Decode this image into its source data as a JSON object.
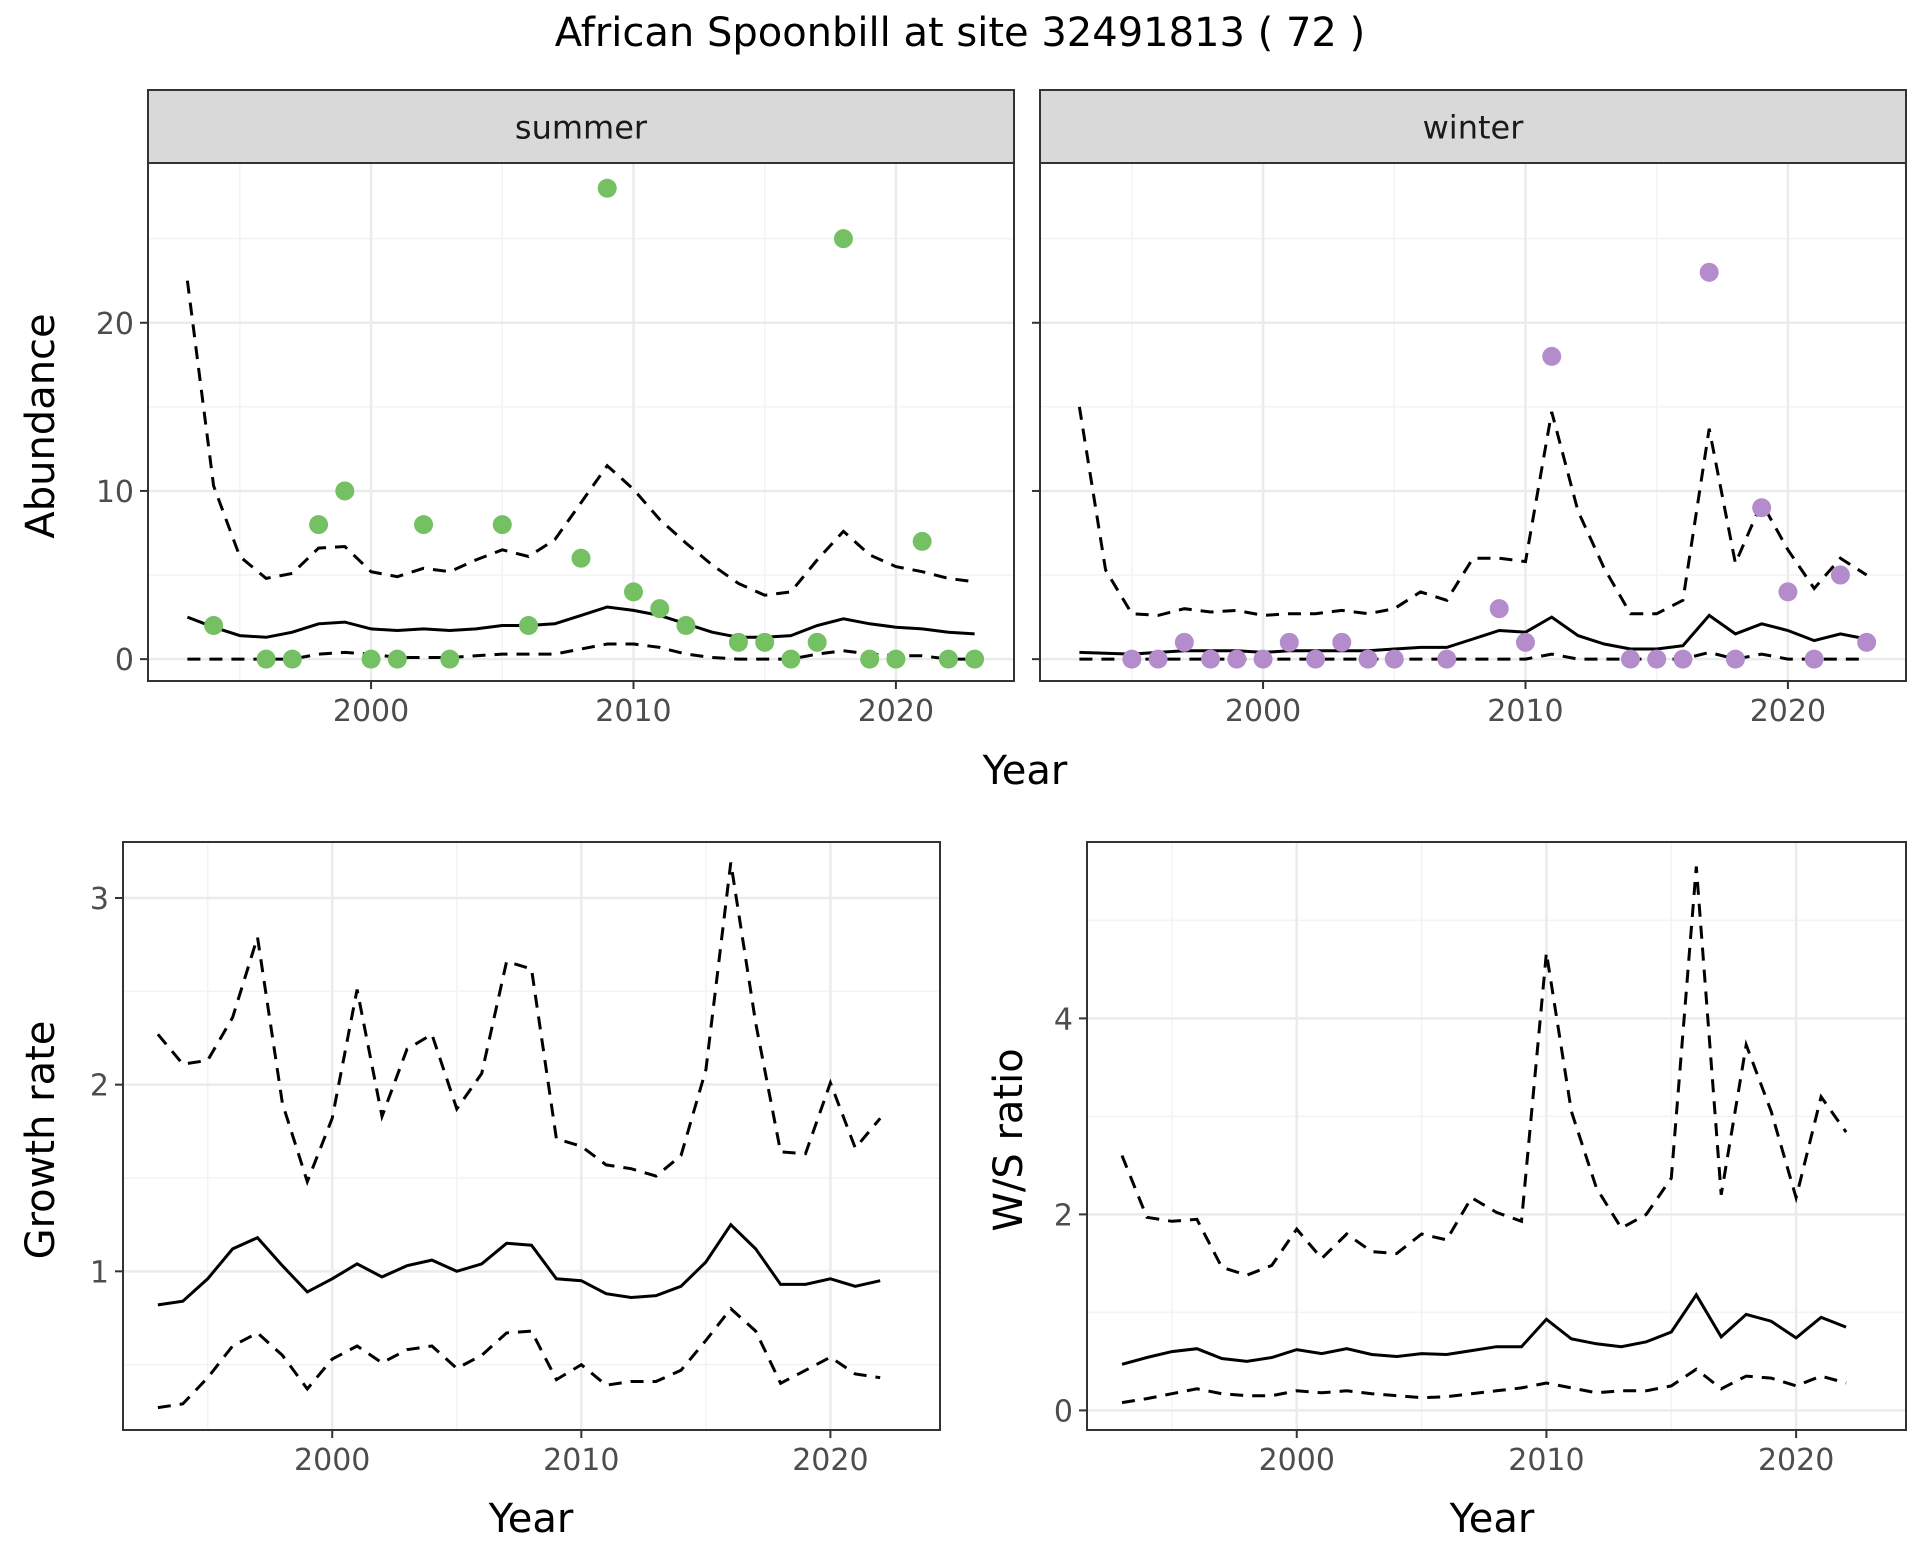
{
  "title": "African Spoonbill at site 32491813 ( 72 )",
  "colors": {
    "summer": "#74c063",
    "winter": "#b48ccc",
    "line": "#000000",
    "panel_border": "#333333",
    "strip_fill": "#d9d9d9",
    "grid_major": "#ebebeb"
  },
  "chart_data": [
    {
      "type": "line",
      "panel": "summer",
      "strip_label": "summer",
      "xlabel": "Year",
      "ylabel": "Abundance",
      "xlim": [
        1991.5,
        2024.5
      ],
      "ylim": [
        -1.3,
        29.5
      ],
      "xticks": [
        2000,
        2010,
        2020
      ],
      "yticks": [
        0,
        10,
        20
      ],
      "x": [
        1993,
        1994,
        1995,
        1996,
        1997,
        1998,
        1999,
        2000,
        2001,
        2002,
        2003,
        2004,
        2005,
        2006,
        2007,
        2008,
        2009,
        2010,
        2011,
        2012,
        2013,
        2014,
        2015,
        2016,
        2017,
        2018,
        2019,
        2020,
        2021,
        2022,
        2023
      ],
      "mean": [
        2.5,
        1.9,
        1.4,
        1.3,
        1.6,
        2.1,
        2.2,
        1.8,
        1.7,
        1.8,
        1.7,
        1.8,
        2.0,
        2.0,
        2.1,
        2.6,
        3.1,
        2.9,
        2.6,
        2.1,
        1.6,
        1.3,
        1.3,
        1.4,
        2.0,
        2.4,
        2.1,
        1.9,
        1.8,
        1.6,
        1.5
      ],
      "upper": [
        22.5,
        10.3,
        6.1,
        4.8,
        5.1,
        6.6,
        6.7,
        5.2,
        4.9,
        5.4,
        5.2,
        5.9,
        6.5,
        6.1,
        7.1,
        9.3,
        11.5,
        10.1,
        8.3,
        6.9,
        5.6,
        4.5,
        3.8,
        4.0,
        5.9,
        7.6,
        6.2,
        5.5,
        5.2,
        4.8,
        4.6
      ],
      "lower": [
        0,
        0,
        0,
        0,
        0,
        0.3,
        0.4,
        0.3,
        0.1,
        0.1,
        0.1,
        0.2,
        0.3,
        0.3,
        0.3,
        0.6,
        0.9,
        0.9,
        0.7,
        0.3,
        0.1,
        0,
        0,
        0,
        0.3,
        0.5,
        0.3,
        0.2,
        0.2,
        0,
        0
      ],
      "points_x": [
        1994,
        1996,
        1997,
        1998,
        1999,
        2000,
        2001,
        2002,
        2003,
        2005,
        2006,
        2008,
        2009,
        2010,
        2011,
        2012,
        2014,
        2015,
        2016,
        2017,
        2018,
        2019,
        2020,
        2021,
        2022,
        2023
      ],
      "points_y": [
        2,
        0,
        0,
        8,
        10,
        0,
        0,
        8,
        0,
        8,
        2,
        6,
        28,
        4,
        3,
        2,
        1,
        1,
        0,
        1,
        25,
        0,
        0,
        7,
        0,
        0
      ]
    },
    {
      "type": "line",
      "panel": "winter",
      "strip_label": "winter",
      "xlabel": "Year",
      "ylabel": "Abundance",
      "xlim": [
        1991.5,
        2024.5
      ],
      "ylim": [
        -1.3,
        29.5
      ],
      "xticks": [
        2000,
        2010,
        2020
      ],
      "yticks": [
        0,
        10,
        20
      ],
      "x": [
        1993,
        1994,
        1995,
        1996,
        1997,
        1998,
        1999,
        2000,
        2001,
        2002,
        2003,
        2004,
        2005,
        2006,
        2007,
        2008,
        2009,
        2010,
        2011,
        2012,
        2013,
        2014,
        2015,
        2016,
        2017,
        2018,
        2019,
        2020,
        2021,
        2022,
        2023
      ],
      "mean": [
        0.4,
        0.35,
        0.3,
        0.4,
        0.5,
        0.5,
        0.5,
        0.4,
        0.5,
        0.5,
        0.5,
        0.5,
        0.6,
        0.7,
        0.7,
        1.2,
        1.7,
        1.6,
        2.5,
        1.4,
        0.9,
        0.6,
        0.6,
        0.8,
        2.6,
        1.5,
        2.1,
        1.7,
        1.1,
        1.5,
        1.2
      ],
      "upper": [
        15.0,
        5.3,
        2.7,
        2.6,
        3.0,
        2.8,
        2.9,
        2.6,
        2.7,
        2.7,
        2.9,
        2.7,
        3.0,
        4.0,
        3.5,
        6.0,
        6.0,
        5.8,
        14.7,
        8.8,
        5.4,
        2.7,
        2.7,
        3.5,
        13.7,
        5.7,
        9.3,
        6.5,
        4.2,
        6.0,
        5.0
      ],
      "lower": [
        0,
        0,
        0,
        0,
        0,
        0,
        0,
        0,
        0,
        0,
        0,
        0,
        0,
        0,
        0,
        0,
        0,
        0,
        0.3,
        0,
        0,
        0,
        0,
        0,
        0.4,
        0,
        0.3,
        0,
        0,
        0,
        0
      ],
      "points_x": [
        1995,
        1996,
        1997,
        1998,
        1999,
        2000,
        2001,
        2002,
        2003,
        2004,
        2005,
        2007,
        2009,
        2010,
        2011,
        2014,
        2015,
        2016,
        2017,
        2018,
        2019,
        2020,
        2021,
        2022,
        2023
      ],
      "points_y": [
        0,
        0,
        1,
        0,
        0,
        0,
        1,
        0,
        1,
        0,
        0,
        0,
        3,
        1,
        18,
        0,
        0,
        0,
        23,
        0,
        9,
        4,
        0,
        5,
        1
      ]
    },
    {
      "type": "line",
      "panel": "growth",
      "xlabel": "Year",
      "ylabel": "Growth rate",
      "xlim": [
        1991.6,
        2024.4
      ],
      "ylim": [
        0.15,
        3.3
      ],
      "xticks": [
        2000,
        2010,
        2020
      ],
      "yticks": [
        1,
        2,
        3
      ],
      "x": [
        1993,
        1994,
        1995,
        1996,
        1997,
        1998,
        1999,
        2000,
        2001,
        2002,
        2003,
        2004,
        2005,
        2006,
        2007,
        2008,
        2009,
        2010,
        2011,
        2012,
        2013,
        2014,
        2015,
        2016,
        2017,
        2018,
        2019,
        2020,
        2021,
        2022
      ],
      "mean": [
        0.82,
        0.84,
        0.96,
        1.12,
        1.18,
        1.03,
        0.89,
        0.96,
        1.04,
        0.97,
        1.03,
        1.06,
        1.0,
        1.04,
        1.15,
        1.14,
        0.96,
        0.95,
        0.88,
        0.86,
        0.87,
        0.92,
        1.05,
        1.25,
        1.12,
        0.93,
        0.93,
        0.96,
        0.92,
        0.95
      ],
      "upper": [
        2.27,
        2.11,
        2.13,
        2.36,
        2.79,
        1.9,
        1.48,
        1.82,
        2.51,
        1.83,
        2.19,
        2.27,
        1.87,
        2.06,
        2.66,
        2.62,
        1.71,
        1.67,
        1.57,
        1.55,
        1.51,
        1.62,
        2.08,
        3.19,
        2.33,
        1.64,
        1.63,
        2.01,
        1.66,
        1.82
      ],
      "lower": [
        0.27,
        0.29,
        0.43,
        0.6,
        0.67,
        0.55,
        0.37,
        0.53,
        0.6,
        0.51,
        0.58,
        0.6,
        0.48,
        0.55,
        0.67,
        0.68,
        0.42,
        0.5,
        0.39,
        0.41,
        0.41,
        0.47,
        0.63,
        0.8,
        0.68,
        0.4,
        0.47,
        0.54,
        0.45,
        0.43
      ]
    },
    {
      "type": "line",
      "panel": "ws_ratio",
      "xlabel": "Year",
      "ylabel": "W/S ratio",
      "xlim": [
        1991.6,
        2024.4
      ],
      "ylim": [
        -0.2,
        5.8
      ],
      "xticks": [
        2000,
        2010,
        2020
      ],
      "yticks": [
        0,
        2,
        4
      ],
      "x": [
        1993,
        1994,
        1995,
        1996,
        1997,
        1998,
        1999,
        2000,
        2001,
        2002,
        2003,
        2004,
        2005,
        2006,
        2007,
        2008,
        2009,
        2010,
        2011,
        2012,
        2013,
        2014,
        2015,
        2016,
        2017,
        2018,
        2019,
        2020,
        2021,
        2022
      ],
      "mean": [
        0.47,
        0.54,
        0.6,
        0.63,
        0.53,
        0.5,
        0.54,
        0.62,
        0.58,
        0.63,
        0.57,
        0.55,
        0.58,
        0.57,
        0.61,
        0.65,
        0.65,
        0.93,
        0.73,
        0.68,
        0.65,
        0.7,
        0.8,
        1.18,
        0.75,
        0.98,
        0.91,
        0.74,
        0.95,
        0.85
      ],
      "upper": [
        2.6,
        1.97,
        1.93,
        1.95,
        1.46,
        1.38,
        1.48,
        1.85,
        1.55,
        1.8,
        1.62,
        1.6,
        1.8,
        1.74,
        2.17,
        2.02,
        1.93,
        4.67,
        3.05,
        2.27,
        1.86,
        2.0,
        2.37,
        5.55,
        2.2,
        3.73,
        3.05,
        2.17,
        3.2,
        2.84
      ],
      "lower": [
        0.08,
        0.12,
        0.17,
        0.22,
        0.17,
        0.15,
        0.15,
        0.2,
        0.18,
        0.2,
        0.17,
        0.15,
        0.13,
        0.14,
        0.17,
        0.2,
        0.23,
        0.28,
        0.23,
        0.18,
        0.2,
        0.2,
        0.25,
        0.42,
        0.22,
        0.35,
        0.33,
        0.25,
        0.35,
        0.28
      ]
    }
  ]
}
